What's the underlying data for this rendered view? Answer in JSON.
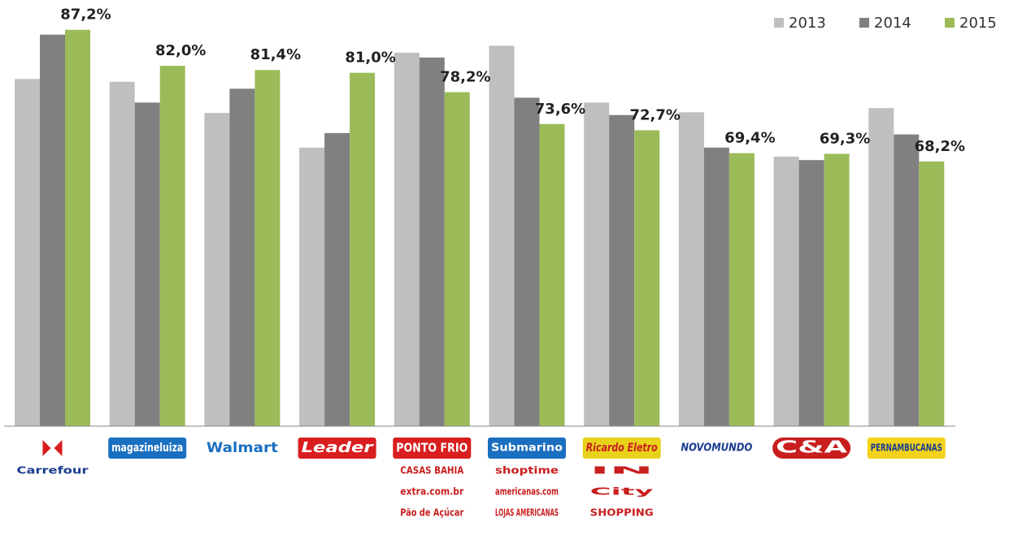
{
  "chart_data": {
    "type": "bar",
    "categories": [
      "Carrefour",
      "magazineluiza",
      "Walmart",
      "Leader",
      "PONTO FRIO",
      "Submarino",
      "Ricardo Eletro",
      "NOVOMUNDO",
      "C&A",
      "PERNAMBUCANAS"
    ],
    "extra_logos": [
      [],
      [],
      [],
      [],
      [
        "CASAS BAHIA",
        "extra.com.br",
        "Pão de Açúcar"
      ],
      [
        "shoptime",
        "americanas.com",
        "LOJAS AMERICANAS"
      ],
      [
        "IN",
        "City",
        "SHOPPING"
      ],
      [],
      [],
      []
    ],
    "series": [
      {
        "name": "2013",
        "color": "#bfbfbf",
        "values": [
          80.1,
          79.7,
          75.2,
          70.2,
          83.9,
          84.9,
          76.7,
          75.3,
          68.9,
          75.9
        ]
      },
      {
        "name": "2014",
        "color": "#808080",
        "values": [
          86.5,
          76.7,
          78.7,
          72.3,
          83.2,
          77.4,
          74.9,
          70.2,
          68.4,
          72.1
        ]
      },
      {
        "name": "2015",
        "color": "#9bbb59",
        "values": [
          87.2,
          82.0,
          81.4,
          81.0,
          78.2,
          73.6,
          72.7,
          69.4,
          69.3,
          68.2
        ],
        "value_labels": [
          "87,2%",
          "82,0%",
          "81,4%",
          "81,0%",
          "78,2%",
          "73,6%",
          "72,7%",
          "69,4%",
          "69,3%",
          "68,2%"
        ]
      }
    ],
    "ylim": [
      30,
      91.5
    ],
    "legend": "top-right"
  }
}
